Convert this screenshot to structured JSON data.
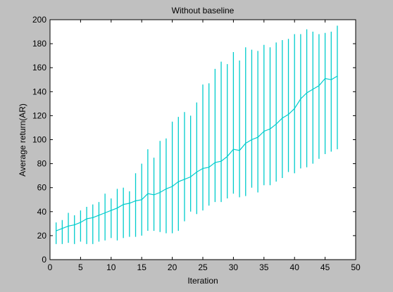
{
  "chart_data": {
    "type": "line",
    "title": "Without baseline",
    "xlabel": "Iteration",
    "ylabel": "Average return(AR)",
    "xlim": [
      0,
      50
    ],
    "ylim": [
      0,
      200
    ],
    "xticks": [
      0,
      5,
      10,
      15,
      20,
      25,
      30,
      35,
      40,
      45,
      50
    ],
    "yticks": [
      0,
      20,
      40,
      60,
      80,
      100,
      120,
      140,
      160,
      180,
      200
    ],
    "grid": false,
    "background": "#c0c0c0",
    "plot_background": "#ffffff",
    "series_color": "#00cccc",
    "series": [
      {
        "x": [
          1,
          2,
          3,
          4,
          5,
          6,
          7,
          8,
          9,
          10,
          11,
          12,
          13,
          14,
          15,
          16,
          17,
          18,
          19,
          20,
          21,
          22,
          23,
          24,
          25,
          26,
          27,
          28,
          29,
          30,
          31,
          32,
          33,
          34,
          35,
          36,
          37,
          38,
          39,
          40,
          41,
          42,
          43,
          44,
          45,
          46,
          47
        ],
        "y": [
          24,
          26,
          28,
          29,
          31,
          34,
          35,
          37,
          39,
          41,
          43,
          46,
          47,
          49,
          50,
          55,
          54,
          56,
          59,
          61,
          65,
          67,
          69,
          73,
          76,
          77,
          81,
          82,
          86,
          92,
          91,
          97,
          100,
          102,
          107,
          109,
          113,
          118,
          121,
          126,
          134,
          139,
          142,
          145,
          151,
          150,
          153
        ],
        "y_low": [
          13,
          13,
          14,
          13,
          15,
          13,
          13,
          15,
          16,
          18,
          16,
          18,
          19,
          19,
          20,
          24,
          24,
          23,
          22,
          22,
          24,
          32,
          40,
          38,
          41,
          45,
          48,
          48,
          51,
          55,
          52,
          53,
          60,
          56,
          62,
          62,
          65,
          68,
          73,
          72,
          76,
          77,
          80,
          84,
          88,
          90,
          92
        ],
        "y_high": [
          31,
          33,
          39,
          37,
          41,
          44,
          46,
          48,
          55,
          51,
          59,
          60,
          57,
          72,
          80,
          92,
          85,
          99,
          101,
          115,
          119,
          123,
          120,
          131,
          146,
          147,
          159,
          165,
          163,
          173,
          166,
          177,
          175,
          174,
          179,
          177,
          181,
          183,
          184,
          188,
          188,
          192,
          190,
          188,
          189,
          190,
          195
        ]
      }
    ]
  }
}
